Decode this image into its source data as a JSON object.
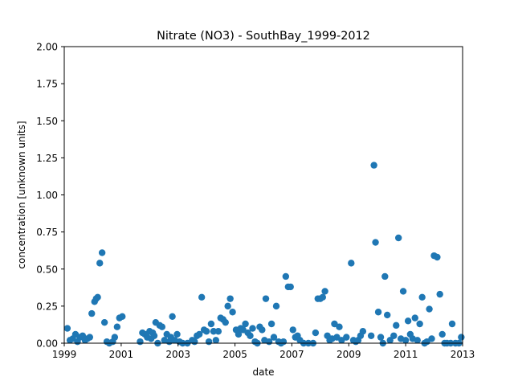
{
  "chart_data": {
    "type": "scatter",
    "title": "Nitrate (NO3) - SouthBay_1999-2012",
    "xlabel": "date",
    "ylabel": "concentration [unknown units]",
    "x_is_date": true,
    "xlim": [
      "1999-01-01",
      "2013-01-01"
    ],
    "ylim": [
      0,
      2.0
    ],
    "x_ticks": [
      "1999",
      "2001",
      "2003",
      "2005",
      "2007",
      "2009",
      "2011",
      "2013"
    ],
    "y_ticks": [
      "0.00",
      "0.25",
      "0.50",
      "0.75",
      "1.00",
      "1.25",
      "1.50",
      "1.75",
      "2.00"
    ],
    "grid": false,
    "legend": "none",
    "marker_color": "#1f77b4",
    "series": [
      {
        "points": [
          [
            "1999-02-10",
            0.1
          ],
          [
            "1999-03-15",
            0.02
          ],
          [
            "1999-04-20",
            0.03
          ],
          [
            "1999-05-25",
            0.06
          ],
          [
            "1999-06-20",
            0.01
          ],
          [
            "1999-07-20",
            0.04
          ],
          [
            "1999-08-25",
            0.05
          ],
          [
            "1999-09-25",
            0.02
          ],
          [
            "1999-10-25",
            0.03
          ],
          [
            "1999-11-25",
            0.04
          ],
          [
            "1999-12-20",
            0.2
          ],
          [
            "2000-01-25",
            0.28
          ],
          [
            "2000-02-15",
            0.3
          ],
          [
            "2000-03-05",
            0.31
          ],
          [
            "2000-04-01",
            0.54
          ],
          [
            "2000-05-01",
            0.61
          ],
          [
            "2000-06-01",
            0.14
          ],
          [
            "2000-07-01",
            0.01
          ],
          [
            "2000-08-01",
            0.0
          ],
          [
            "2000-09-15",
            0.01
          ],
          [
            "2000-10-10",
            0.04
          ],
          [
            "2000-11-10",
            0.11
          ],
          [
            "2000-12-10",
            0.17
          ],
          [
            "2001-01-15",
            0.18
          ],
          [
            "2001-09-01",
            0.01
          ],
          [
            "2001-10-01",
            0.07
          ],
          [
            "2001-11-01",
            0.06
          ],
          [
            "2001-12-01",
            0.04
          ],
          [
            "2002-01-01",
            0.08
          ],
          [
            "2002-01-20",
            0.03
          ],
          [
            "2002-02-10",
            0.07
          ],
          [
            "2002-03-01",
            0.05
          ],
          [
            "2002-03-20",
            0.14
          ],
          [
            "2002-04-15",
            0.0
          ],
          [
            "2002-05-10",
            0.12
          ],
          [
            "2002-06-10",
            0.11
          ],
          [
            "2002-07-10",
            0.02
          ],
          [
            "2002-08-10",
            0.06
          ],
          [
            "2002-09-10",
            0.01
          ],
          [
            "2002-10-01",
            0.04
          ],
          [
            "2002-10-20",
            0.18
          ],
          [
            "2002-11-20",
            0.02
          ],
          [
            "2002-12-20",
            0.06
          ],
          [
            "2003-01-20",
            0.01
          ],
          [
            "2003-03-01",
            0.0
          ],
          [
            "2003-05-01",
            0.0
          ],
          [
            "2003-07-01",
            0.02
          ],
          [
            "2003-08-01",
            0.01
          ],
          [
            "2003-09-01",
            0.05
          ],
          [
            "2003-10-01",
            0.06
          ],
          [
            "2003-11-01",
            0.31
          ],
          [
            "2003-12-01",
            0.09
          ],
          [
            "2004-01-01",
            0.08
          ],
          [
            "2004-02-01",
            0.01
          ],
          [
            "2004-03-01",
            0.13
          ],
          [
            "2004-04-01",
            0.08
          ],
          [
            "2004-05-01",
            0.02
          ],
          [
            "2004-06-01",
            0.08
          ],
          [
            "2004-07-01",
            0.17
          ],
          [
            "2004-08-01",
            0.16
          ],
          [
            "2004-09-01",
            0.14
          ],
          [
            "2004-10-01",
            0.25
          ],
          [
            "2004-11-01",
            0.3
          ],
          [
            "2004-12-01",
            0.21
          ],
          [
            "2005-01-15",
            0.09
          ],
          [
            "2005-02-15",
            0.06
          ],
          [
            "2005-03-15",
            0.1
          ],
          [
            "2005-04-15",
            0.09
          ],
          [
            "2005-05-15",
            0.13
          ],
          [
            "2005-06-15",
            0.07
          ],
          [
            "2005-07-15",
            0.05
          ],
          [
            "2005-08-15",
            0.1
          ],
          [
            "2005-09-15",
            0.01
          ],
          [
            "2005-10-15",
            0.0
          ],
          [
            "2005-11-15",
            0.11
          ],
          [
            "2005-12-15",
            0.09
          ],
          [
            "2006-01-15",
            0.02
          ],
          [
            "2006-02-01",
            0.3
          ],
          [
            "2006-03-15",
            0.01
          ],
          [
            "2006-04-15",
            0.13
          ],
          [
            "2006-05-15",
            0.04
          ],
          [
            "2006-06-15",
            0.25
          ],
          [
            "2006-07-15",
            0.01
          ],
          [
            "2006-08-15",
            0.0
          ],
          [
            "2006-09-15",
            0.01
          ],
          [
            "2006-10-15",
            0.45
          ],
          [
            "2006-11-15",
            0.38
          ],
          [
            "2006-12-15",
            0.38
          ],
          [
            "2007-01-15",
            0.09
          ],
          [
            "2007-02-15",
            0.04
          ],
          [
            "2007-03-15",
            0.05
          ],
          [
            "2007-04-15",
            0.02
          ],
          [
            "2007-06-01",
            0.0
          ],
          [
            "2007-08-01",
            0.0
          ],
          [
            "2007-10-01",
            0.0
          ],
          [
            "2007-11-01",
            0.07
          ],
          [
            "2007-12-01",
            0.3
          ],
          [
            "2008-01-01",
            0.3
          ],
          [
            "2008-02-01",
            0.31
          ],
          [
            "2008-03-01",
            0.35
          ],
          [
            "2008-04-01",
            0.05
          ],
          [
            "2008-05-01",
            0.02
          ],
          [
            "2008-06-01",
            0.03
          ],
          [
            "2008-07-01",
            0.13
          ],
          [
            "2008-08-01",
            0.04
          ],
          [
            "2008-09-01",
            0.11
          ],
          [
            "2008-10-01",
            0.02
          ],
          [
            "2008-12-01",
            0.04
          ],
          [
            "2009-02-01",
            0.54
          ],
          [
            "2009-03-01",
            0.02
          ],
          [
            "2009-04-01",
            0.01
          ],
          [
            "2009-05-01",
            0.02
          ],
          [
            "2009-06-01",
            0.05
          ],
          [
            "2009-07-01",
            0.08
          ],
          [
            "2009-10-15",
            0.05
          ],
          [
            "2009-11-20",
            1.2
          ],
          [
            "2009-12-10",
            0.68
          ],
          [
            "2010-01-15",
            0.21
          ],
          [
            "2010-02-15",
            0.04
          ],
          [
            "2010-03-15",
            0.0
          ],
          [
            "2010-04-10",
            0.45
          ],
          [
            "2010-05-10",
            0.19
          ],
          [
            "2010-06-15",
            0.02
          ],
          [
            "2010-08-01",
            0.05
          ],
          [
            "2010-09-01",
            0.12
          ],
          [
            "2010-10-01",
            0.71
          ],
          [
            "2010-11-01",
            0.03
          ],
          [
            "2010-12-01",
            0.35
          ],
          [
            "2011-01-01",
            0.02
          ],
          [
            "2011-02-01",
            0.15
          ],
          [
            "2011-03-01",
            0.06
          ],
          [
            "2011-04-01",
            0.03
          ],
          [
            "2011-05-01",
            0.17
          ],
          [
            "2011-06-01",
            0.02
          ],
          [
            "2011-07-01",
            0.13
          ],
          [
            "2011-08-01",
            0.31
          ],
          [
            "2011-09-01",
            0.0
          ],
          [
            "2011-10-01",
            0.01
          ],
          [
            "2011-11-01",
            0.23
          ],
          [
            "2011-12-01",
            0.03
          ],
          [
            "2012-01-01",
            0.59
          ],
          [
            "2012-02-10",
            0.58
          ],
          [
            "2012-03-15",
            0.33
          ],
          [
            "2012-04-15",
            0.06
          ],
          [
            "2012-05-15",
            0.0
          ],
          [
            "2012-06-15",
            0.0
          ],
          [
            "2012-08-01",
            0.0
          ],
          [
            "2012-08-20",
            0.13
          ],
          [
            "2012-10-01",
            0.0
          ],
          [
            "2012-11-15",
            0.0
          ],
          [
            "2012-12-15",
            0.04
          ]
        ]
      }
    ]
  }
}
